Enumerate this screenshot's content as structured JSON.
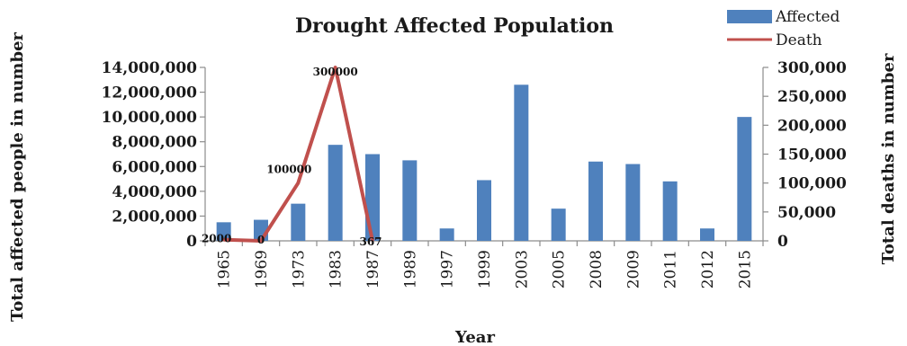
{
  "chart_data": {
    "type": "bar",
    "title": "Drought Affected Population",
    "xlabel": "Year",
    "ylabel": "Total affected people in number",
    "y2label": "Total deaths in number",
    "categories": [
      "1965",
      "1969",
      "1973",
      "1983",
      "1987",
      "1989",
      "1997",
      "1999",
      "2003",
      "2005",
      "2008",
      "2009",
      "2011",
      "2012",
      "2015"
    ],
    "series": [
      {
        "name": "Affected",
        "kind": "bar",
        "axis": "left",
        "color": "#4f81bd",
        "values": [
          1500000,
          1700000,
          3000000,
          7750000,
          7000000,
          6500000,
          1000000,
          4900000,
          12600000,
          2600000,
          6400000,
          6200000,
          4800000,
          1000000,
          10000000
        ]
      },
      {
        "name": "Death",
        "kind": "line",
        "axis": "right",
        "color": "#c0504d",
        "values": [
          2000,
          0,
          100000,
          300000,
          367,
          null,
          null,
          null,
          null,
          null,
          null,
          null,
          null,
          null,
          null
        ],
        "data_labels": [
          "2000",
          "0",
          "100000",
          "300000",
          "367"
        ]
      }
    ],
    "ylim": [
      0,
      14000000
    ],
    "y2lim": [
      0,
      300000
    ],
    "yticks": [
      "0",
      "2,000,000",
      "4,000,000",
      "6,000,000",
      "8,000,000",
      "10,000,000",
      "12,000,000",
      "14,000,000"
    ],
    "y2ticks": [
      "0",
      "50,000",
      "100,000",
      "150,000",
      "200,000",
      "250,000",
      "300,000"
    ],
    "grid": false,
    "legend": "top-right"
  }
}
